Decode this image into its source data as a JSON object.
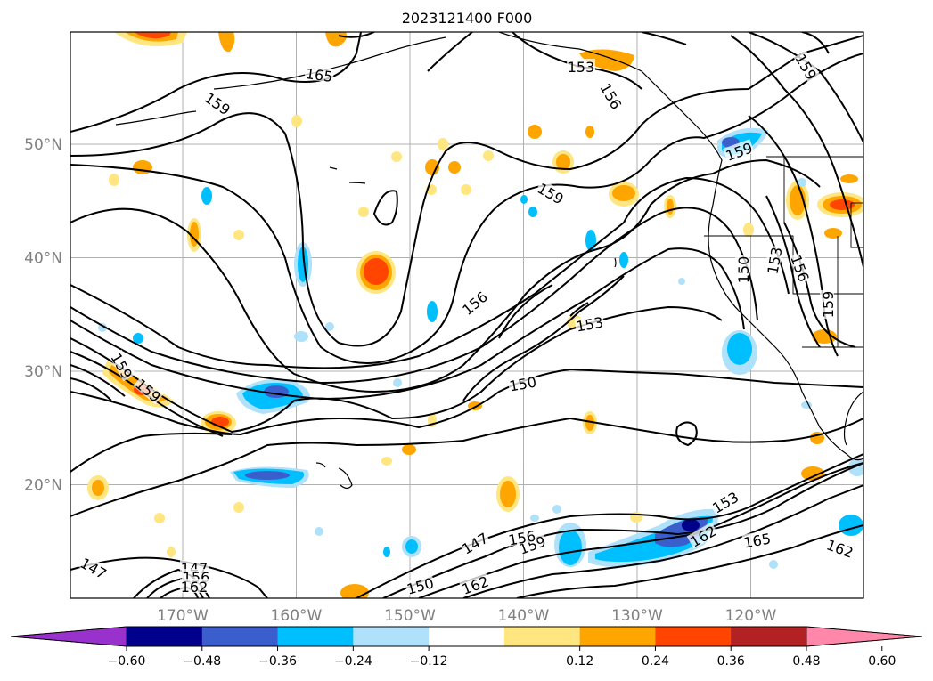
{
  "figure": {
    "title": "2023121400 F000"
  },
  "map": {
    "lat_ticks": [
      {
        "value": 50,
        "label": "50°N"
      },
      {
        "value": 40,
        "label": "40°N"
      },
      {
        "value": 30,
        "label": "30°N"
      },
      {
        "value": 20,
        "label": "20°N"
      }
    ],
    "lon_ticks": [
      {
        "value": -170,
        "label": "170°W"
      },
      {
        "value": -160,
        "label": "160°W"
      },
      {
        "value": -150,
        "label": "150°W"
      },
      {
        "value": -140,
        "label": "140°W"
      },
      {
        "value": -130,
        "label": "130°W"
      },
      {
        "value": -120,
        "label": "120°W"
      }
    ],
    "contour_labels": [
      "165",
      "159",
      "159",
      "159",
      "156",
      "153",
      "150",
      "150",
      "153",
      "156",
      "159",
      "159",
      "159",
      "156",
      "153",
      "147",
      "147",
      "147",
      "159",
      "156",
      "159",
      "162",
      "153",
      "162",
      "165",
      "162",
      "150",
      "156",
      "162"
    ]
  },
  "colorbar": {
    "tick_labels": [
      "−0.60",
      "−0.48",
      "−0.36",
      "−0.24",
      "−0.12",
      "0.12",
      "0.24",
      "0.36",
      "0.48",
      "0.60"
    ],
    "colors": [
      "#9932cc",
      "#00008b",
      "#3a5fcd",
      "#00bfff",
      "#afe1fa",
      "#ffffff",
      "#ffe680",
      "#ffa500",
      "#ff4500",
      "#b22222",
      "#ff88aa"
    ]
  }
}
